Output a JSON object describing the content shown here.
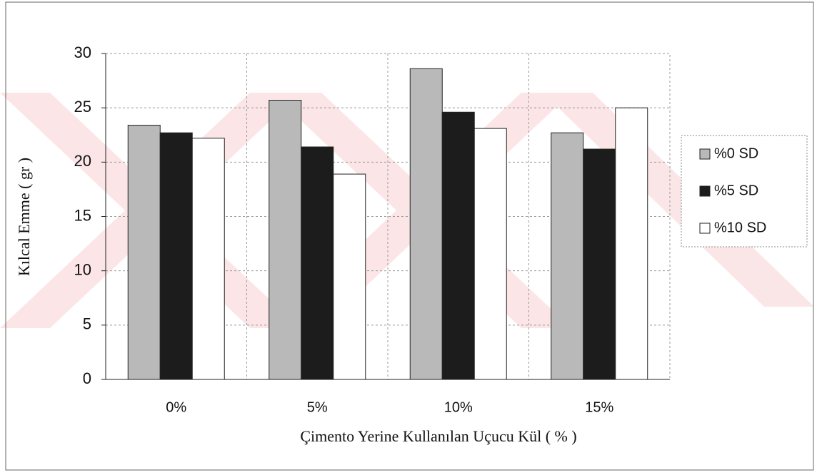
{
  "chart_data": {
    "type": "bar",
    "x_label": "Çimento Yerine Kullanılan Uçucu Kül ( % )",
    "y_label": "Kılcal Emme ( gr )",
    "categories": [
      "0%",
      "5%",
      "10%",
      "15%"
    ],
    "series": [
      {
        "name": "%0 SD",
        "color": "#b9b9b9",
        "values": [
          23.4,
          25.7,
          28.6,
          22.7
        ]
      },
      {
        "name": "%5 SD",
        "color": "#1c1c1c",
        "values": [
          22.7,
          21.4,
          24.6,
          21.2
        ]
      },
      {
        "name": "%10 SD",
        "color": "#ffffff",
        "values": [
          22.2,
          18.9,
          23.1,
          25.0
        ]
      }
    ],
    "ylim": [
      0,
      30
    ],
    "yticks": [
      0,
      5,
      10,
      15,
      20,
      25,
      30
    ],
    "grid": true,
    "legend": "right"
  }
}
